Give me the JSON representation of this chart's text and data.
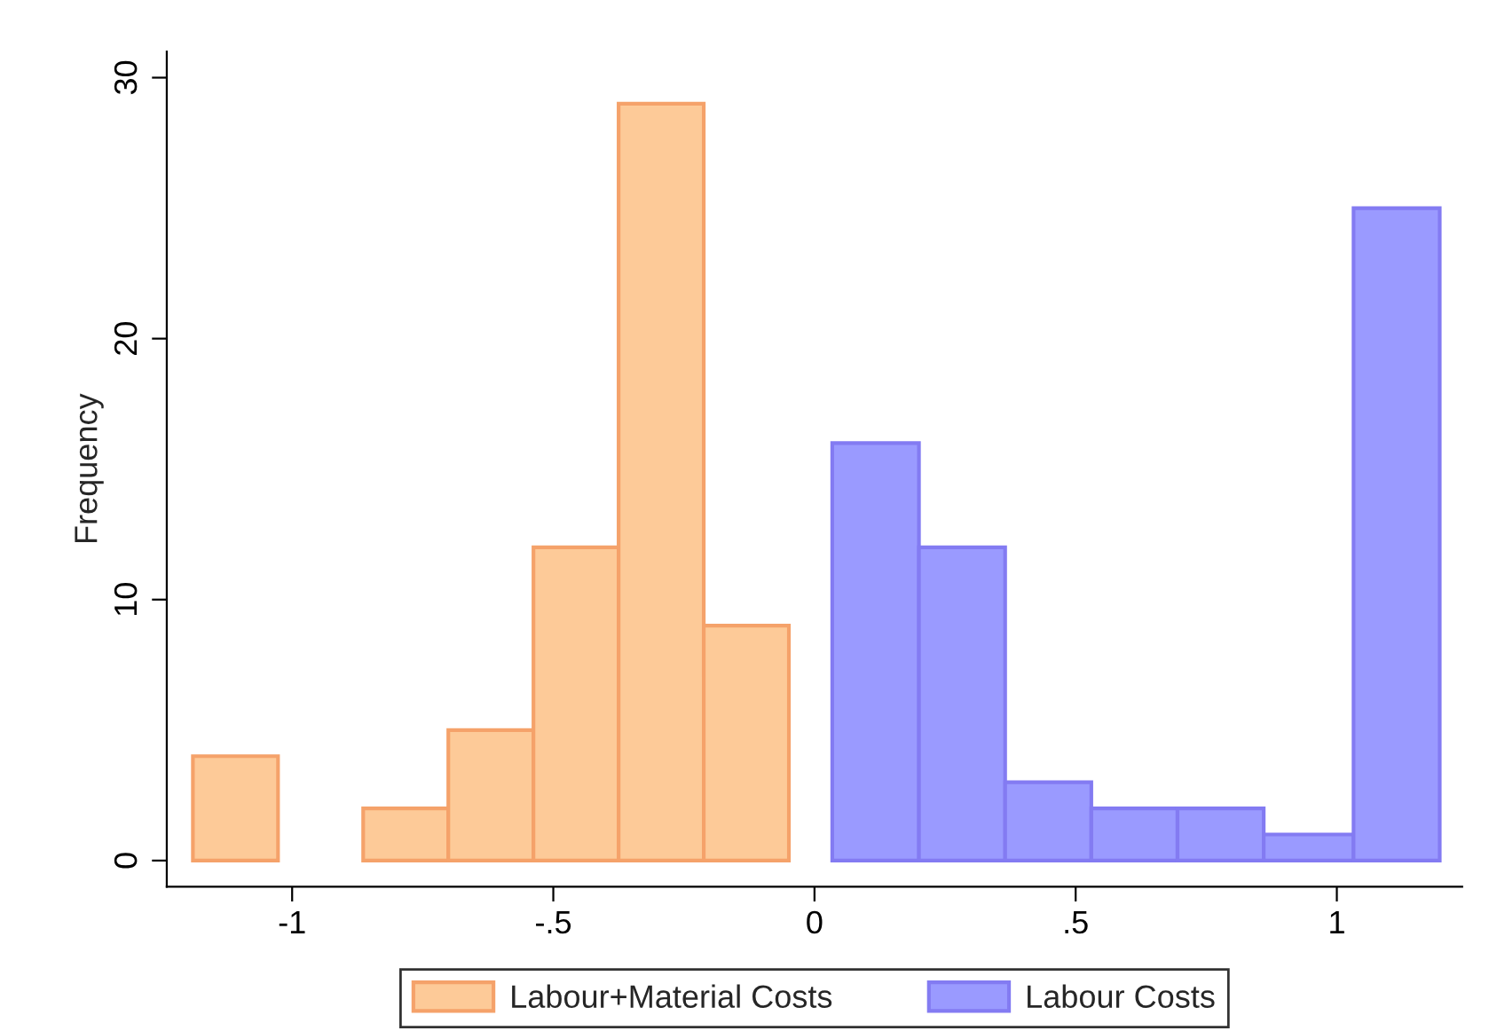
{
  "chart_data": {
    "type": "histogram",
    "ylabel": "Frequency",
    "bins": [
      -1.19,
      -1.027,
      -0.864,
      -0.701,
      -0.538,
      -0.375,
      -0.212,
      -0.049,
      0.034,
      0.2,
      0.365,
      0.53,
      0.695,
      0.86,
      1.032,
      1.197
    ],
    "series": [
      {
        "name": "Labour+Material Costs",
        "color": "#fdca98",
        "values": [
          4,
          0,
          2,
          5,
          12,
          29,
          9,
          null,
          null,
          null,
          null,
          null,
          null,
          null,
          null
        ]
      },
      {
        "name": "Labour Costs",
        "color": "#9a9aff",
        "values": [
          null,
          null,
          null,
          null,
          null,
          null,
          null,
          null,
          16,
          12,
          3,
          2,
          2,
          1,
          25
        ]
      }
    ],
    "xlim": [
      -1.24,
      1.24
    ],
    "ylim": [
      -1,
      31
    ],
    "xticks": [
      {
        "value": -1,
        "label": "-1"
      },
      {
        "value": -0.5,
        "label": "-.5"
      },
      0,
      {
        "value": 0.5,
        "label": ".5"
      },
      1
    ],
    "yticks": [
      0,
      10,
      20,
      30
    ],
    "grid": false,
    "legend": "bottom"
  }
}
